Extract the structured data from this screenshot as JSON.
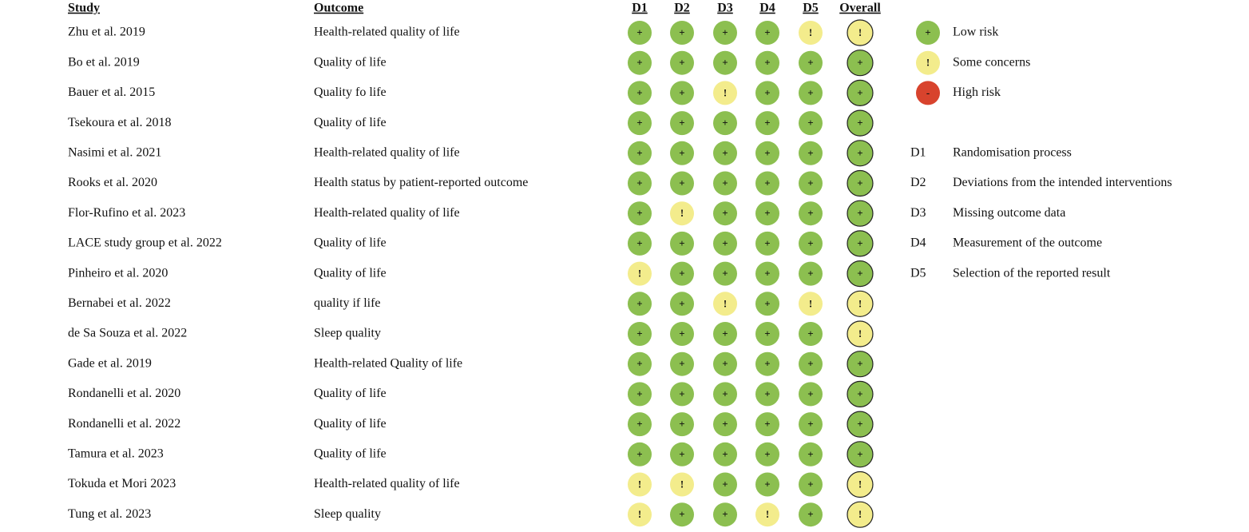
{
  "header": {
    "study": "Study",
    "outcome": "Outcome",
    "domains": [
      "D1",
      "D2",
      "D3",
      "D4",
      "D5",
      "Overall"
    ]
  },
  "rows": [
    {
      "study": "Zhu et al. 2019",
      "outcome": "Health-related quality of life",
      "judgments": [
        "+",
        "+",
        "+",
        "+",
        "!",
        "!"
      ]
    },
    {
      "study": "Bo et al. 2019",
      "outcome": "Quality of life",
      "judgments": [
        "+",
        "+",
        "+",
        "+",
        "+",
        "+"
      ]
    },
    {
      "study": "Bauer et al. 2015",
      "outcome": "Quality fo life",
      "judgments": [
        "+",
        "+",
        "!",
        "+",
        "+",
        "+"
      ]
    },
    {
      "study": "Tsekoura et al. 2018",
      "outcome": "Quality of life",
      "judgments": [
        "+",
        "+",
        "+",
        "+",
        "+",
        "+"
      ]
    },
    {
      "study": "Nasimi et al. 2021",
      "outcome": "Health-related quality of life",
      "judgments": [
        "+",
        "+",
        "+",
        "+",
        "+",
        "+"
      ]
    },
    {
      "study": "Rooks et al. 2020",
      "outcome": "Health status by patient-reported outcome",
      "judgments": [
        "+",
        "+",
        "+",
        "+",
        "+",
        "+"
      ]
    },
    {
      "study": "Flor-Rufino et al. 2023",
      "outcome": "Health-related quality of life",
      "judgments": [
        "+",
        "!",
        "+",
        "+",
        "+",
        "+"
      ]
    },
    {
      "study": "LACE study group et al. 2022",
      "outcome": "Quality of life",
      "judgments": [
        "+",
        "+",
        "+",
        "+",
        "+",
        "+"
      ]
    },
    {
      "study": "Pinheiro et al. 2020",
      "outcome": "Quality of life",
      "judgments": [
        "!",
        "+",
        "+",
        "+",
        "+",
        "+"
      ]
    },
    {
      "study": "Bernabei et al. 2022",
      "outcome": "quality if life",
      "judgments": [
        "+",
        "+",
        "!",
        "+",
        "!",
        "!"
      ]
    },
    {
      "study": "de Sa Souza et al. 2022",
      "outcome": "Sleep quality",
      "judgments": [
        "+",
        "+",
        "+",
        "+",
        "+",
        "!"
      ]
    },
    {
      "study": "Gade et al. 2019",
      "outcome": "Health-related Quality of life",
      "judgments": [
        "+",
        "+",
        "+",
        "+",
        "+",
        "+"
      ]
    },
    {
      "study": "Rondanelli et al. 2020",
      "outcome": "Quality of life",
      "judgments": [
        "+",
        "+",
        "+",
        "+",
        "+",
        "+"
      ]
    },
    {
      "study": "Rondanelli et al. 2022",
      "outcome": "Quality of life",
      "judgments": [
        "+",
        "+",
        "+",
        "+",
        "+",
        "+"
      ]
    },
    {
      "study": "Tamura et al. 2023",
      "outcome": "Quality of life",
      "judgments": [
        "+",
        "+",
        "+",
        "+",
        "+",
        "+"
      ]
    },
    {
      "study": "Tokuda et Mori 2023",
      "outcome": "Health-related quality of life",
      "judgments": [
        "!",
        "!",
        "+",
        "+",
        "+",
        "!"
      ]
    },
    {
      "study": "Tung et al. 2023",
      "outcome": "Sleep quality",
      "judgments": [
        "!",
        "+",
        "+",
        "!",
        "+",
        "!"
      ]
    }
  ],
  "legend": [
    {
      "symbol": "+",
      "label": "Low risk",
      "color": "#8cbf50"
    },
    {
      "symbol": "!",
      "label": "Some concerns",
      "color": "#f3ec8c"
    },
    {
      "symbol": "-",
      "label": "High risk",
      "color": "#d8432d"
    }
  ],
  "domain_key": [
    {
      "code": "D1",
      "description": "Randomisation process"
    },
    {
      "code": "D2",
      "description": "Deviations from the intended interventions"
    },
    {
      "code": "D3",
      "description": "Missing outcome data"
    },
    {
      "code": "D4",
      "description": "Measurement of the outcome"
    },
    {
      "code": "D5",
      "description": "Selection of the reported result"
    }
  ]
}
